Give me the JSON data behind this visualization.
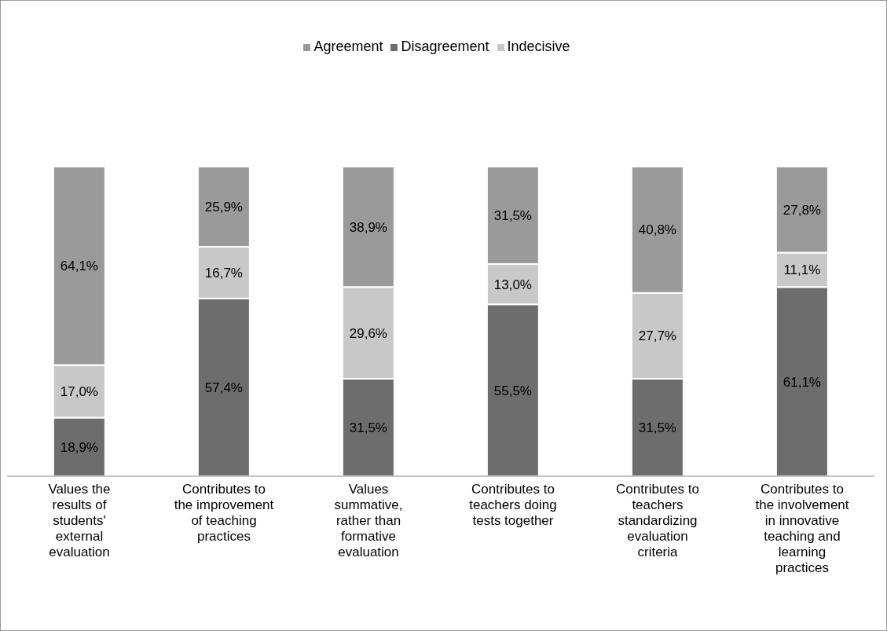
{
  "chart_data": {
    "type": "bar",
    "stacked": true,
    "legend": "top",
    "categories": [
      "Values the results of students' external evaluation",
      "Contributes to the improvement of teaching practices",
      "Values summative, rather than formative evaluation",
      "Contributes to teachers doing tests together",
      "Contributes to teachers standardizing evaluation criteria",
      "Contributes to the involvement in innovative teaching and learning practices"
    ],
    "series": [
      {
        "name": "Disagreement",
        "color": "#6d6d6d",
        "values": [
          18.9,
          57.4,
          31.5,
          55.5,
          31.5,
          61.1
        ],
        "value_labels": [
          "18,9%",
          "57,4%",
          "31,5%",
          "55,5%",
          "31,5%",
          "61,1%"
        ]
      },
      {
        "name": "Indecisive",
        "color": "#c8c8c8",
        "values": [
          17.0,
          16.7,
          29.6,
          13.0,
          27.7,
          11.1
        ],
        "value_labels": [
          "17,0%",
          "16,7%",
          "29,6%",
          "13,0%",
          "27,7%",
          "11,1%"
        ]
      },
      {
        "name": "Agreement",
        "color": "#9a9a9a",
        "values": [
          64.1,
          25.9,
          38.9,
          31.5,
          40.8,
          27.8
        ],
        "value_labels": [
          "64,1%",
          "25,9%",
          "38,9%",
          "31,5%",
          "40,8%",
          "27,8%"
        ]
      }
    ]
  }
}
